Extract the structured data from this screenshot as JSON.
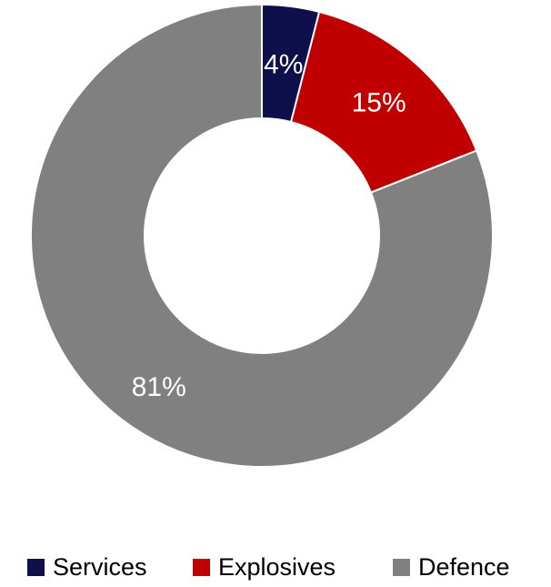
{
  "chart_data": {
    "type": "pie",
    "donut": true,
    "title": "",
    "legend_position": "bottom",
    "slices": [
      {
        "name": "Services",
        "value": 4,
        "label": "4%",
        "color": "#0f0f4b"
      },
      {
        "name": "Explosives",
        "value": 15,
        "label": "15%",
        "color": "#c00000"
      },
      {
        "name": "Defence",
        "value": 81,
        "label": "81%",
        "color": "#808080"
      }
    ]
  }
}
